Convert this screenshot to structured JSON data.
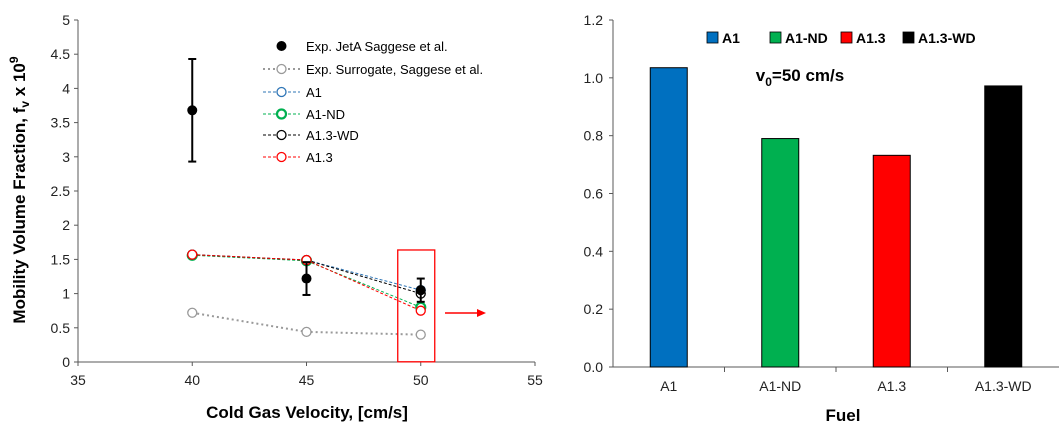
{
  "chart_data": [
    {
      "type": "scatter",
      "title": "",
      "xlabel": "Cold Gas Velocity, [cm/s]",
      "ylabel_main": "Mobility Volume Fraction, f",
      "ylabel_sub": "v",
      "ylabel_tail": " x 10",
      "ylabel_sup": "9",
      "xlim": [
        35,
        55
      ],
      "ylim": [
        0,
        5
      ],
      "xticks": [
        "35",
        "40",
        "45",
        "50",
        "55"
      ],
      "yticks": [
        "0",
        "0.5",
        "1",
        "1.5",
        "2",
        "2.5",
        "3",
        "3.5",
        "4",
        "4.5",
        "5"
      ],
      "legend_position": "top-right",
      "series": [
        {
          "name": "Exp. JetA Saggese et al.",
          "color": "#000000",
          "style": "filled",
          "x": [
            40,
            45,
            50
          ],
          "y": [
            3.68,
            1.22,
            1.05
          ],
          "err": [
            0.75,
            0.24,
            0.17
          ]
        },
        {
          "name": "Exp. Surrogate, Saggese et al.",
          "color": "#999999",
          "style": "dotted",
          "x": [
            40,
            45,
            50
          ],
          "y": [
            0.72,
            0.44,
            0.4
          ]
        },
        {
          "name": "A1",
          "color": "#2e75b6",
          "style": "dashed",
          "x": [
            40,
            45,
            50
          ],
          "y": [
            1.57,
            1.49,
            1.05
          ]
        },
        {
          "name": "A1-ND",
          "color": "#00b050",
          "style": "dashed",
          "x": [
            40,
            45,
            50
          ],
          "y": [
            1.56,
            1.48,
            0.8
          ]
        },
        {
          "name": "A1.3-WD",
          "color": "#000000",
          "style": "dashed",
          "x": [
            40,
            45,
            50
          ],
          "y": [
            1.57,
            1.49,
            1.0
          ]
        },
        {
          "name": "A1.3",
          "color": "#ff0000",
          "style": "dashed",
          "x": [
            40,
            45,
            50
          ],
          "y": [
            1.57,
            1.49,
            0.75
          ]
        }
      ],
      "highlight": {
        "x": 50,
        "y_range": [
          0.12,
          1.55
        ],
        "color": "#ff0000"
      }
    },
    {
      "type": "bar",
      "title": "",
      "xlabel": "Fuel",
      "ylabel": "",
      "categories": [
        "A1",
        "A1-ND",
        "A1.3",
        "A1.3-WD"
      ],
      "values": [
        1.035,
        0.79,
        0.732,
        0.972
      ],
      "colors": [
        "#0070c0",
        "#00b050",
        "#ff0000",
        "#000000"
      ],
      "ylim": [
        0,
        1.2
      ],
      "yticks": [
        "0.0",
        "0.2",
        "0.4",
        "0.6",
        "0.8",
        "1.0",
        "1.2"
      ],
      "legend_position": "top",
      "legend": [
        "A1",
        "A1-ND",
        "A1.3",
        "A1.3-WD"
      ],
      "annotation": {
        "main": "v",
        "sub": "0",
        "tail": "=50 cm/s"
      }
    }
  ]
}
